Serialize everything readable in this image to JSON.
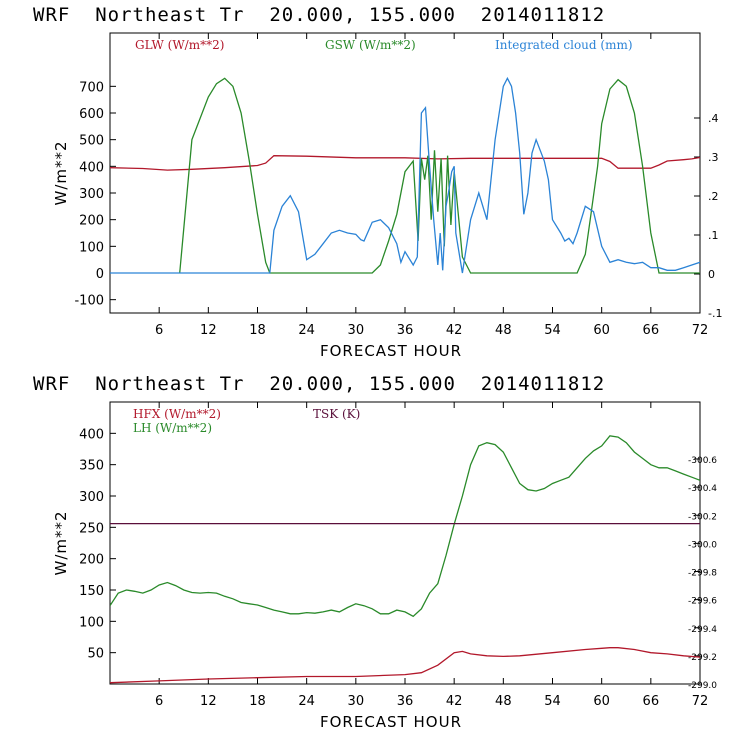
{
  "panels": [
    {
      "title": "WRF  Northeast Tr  20.000, 155.000  2014011812"
    },
    {
      "title": "WRF  Northeast Tr  20.000, 155.000  2014011812"
    }
  ],
  "colors": {
    "red": "#b2182b",
    "green": "#2a8a2a",
    "blue": "#2b83d6",
    "purple": "#5a0f3a"
  },
  "chart_data": [
    {
      "type": "line",
      "xlabel": "FORECAST HOUR",
      "ylabel": "W/m**2",
      "xlim": [
        0,
        72
      ],
      "ylim": [
        -150,
        900
      ],
      "x_ticks": [
        6,
        12,
        18,
        24,
        30,
        36,
        42,
        48,
        54,
        60,
        66,
        72
      ],
      "y_ticks": [
        -100,
        0,
        100,
        200,
        300,
        400,
        500,
        600,
        700
      ],
      "y2_ticks": [
        ".4",
        ".3",
        ".2",
        ".1",
        "0",
        "-.1"
      ],
      "legend": [
        "GLW (W/m**2)",
        "GSW (W/m**2)",
        "Integrated cloud (mm)"
      ],
      "series": [
        {
          "name": "GLW (W/m**2)",
          "color": "#b2182b",
          "x": [
            0,
            4,
            7,
            10,
            14,
            18,
            19,
            20,
            24,
            30,
            36,
            40,
            44,
            48,
            54,
            60,
            61,
            62,
            64,
            66,
            67,
            68,
            70,
            71,
            72
          ],
          "y": [
            395,
            392,
            386,
            389,
            395,
            403,
            412,
            440,
            438,
            432,
            432,
            428,
            430,
            430,
            430,
            430,
            418,
            393,
            393,
            393,
            405,
            420,
            425,
            428,
            433
          ]
        },
        {
          "name": "GSW (W/m**2)",
          "color": "#2a8a2a",
          "x": [
            8.5,
            10,
            12,
            13,
            14,
            15,
            16,
            17,
            18,
            19,
            19.5,
            32,
            33,
            34,
            35,
            36,
            37,
            37.6,
            38,
            38.4,
            38.8,
            39.2,
            39.6,
            40,
            40.4,
            40.8,
            41.2,
            41.6,
            42,
            43,
            44,
            46,
            48,
            50,
            52,
            54,
            56,
            57,
            58,
            58.6,
            59.5,
            60,
            61,
            62,
            63,
            64,
            65,
            66,
            67,
            72
          ],
          "y": [
            0,
            500,
            660,
            710,
            730,
            700,
            600,
            420,
            220,
            40,
            0,
            0,
            30,
            120,
            220,
            380,
            420,
            120,
            430,
            350,
            440,
            200,
            460,
            230,
            430,
            100,
            440,
            180,
            380,
            60,
            0,
            0,
            0,
            0,
            0,
            0,
            0,
            0,
            70,
            200,
            400,
            560,
            690,
            725,
            700,
            600,
            400,
            150,
            0,
            0
          ]
        },
        {
          "name": "Integrated cloud (mm)",
          "color": "#2b83d6",
          "x": [
            0,
            19.5,
            20,
            21,
            22,
            23,
            24,
            25,
            26,
            27,
            28,
            29,
            30,
            30.6,
            31,
            32,
            33,
            34,
            35,
            35.5,
            36,
            37,
            37.5,
            38,
            38.5,
            39,
            39.5,
            40,
            40.3,
            40.6,
            41,
            41.3,
            41.7,
            42,
            42.2,
            43,
            43.5,
            44,
            45,
            46,
            47,
            48,
            48.5,
            49,
            49.5,
            50,
            50.5,
            51,
            51.5,
            52,
            53,
            53.5,
            54,
            55,
            55.5,
            56,
            56.5,
            57,
            58,
            59,
            60,
            61,
            62,
            63,
            64,
            65,
            66,
            67,
            68,
            69,
            70,
            71,
            72
          ],
          "y": [
            0,
            0,
            160,
            250,
            290,
            230,
            50,
            70,
            110,
            150,
            160,
            150,
            145,
            125,
            120,
            190,
            200,
            170,
            110,
            40,
            80,
            30,
            60,
            600,
            620,
            400,
            200,
            30,
            150,
            10,
            250,
            300,
            380,
            400,
            150,
            0,
            100,
            200,
            300,
            200,
            500,
            700,
            730,
            700,
            600,
            450,
            220,
            300,
            450,
            500,
            420,
            350,
            200,
            150,
            120,
            130,
            110,
            150,
            250,
            230,
            100,
            40,
            50,
            40,
            35,
            40,
            20,
            20,
            10,
            10,
            20,
            30,
            40
          ]
        }
      ]
    },
    {
      "type": "line",
      "xlabel": "FORECAST HOUR",
      "ylabel": "W/m**2",
      "xlim": [
        0,
        72
      ],
      "ylim": [
        0,
        450
      ],
      "x_ticks": [
        6,
        12,
        18,
        24,
        30,
        36,
        42,
        48,
        54,
        60,
        66,
        72
      ],
      "y_ticks": [
        50,
        100,
        150,
        200,
        250,
        300,
        350,
        400
      ],
      "y2_ticks": [
        "300.6",
        "300.4",
        "300.2",
        "300.0",
        "299.8",
        "299.6",
        "299.4",
        "299.2",
        "299.0"
      ],
      "legend": [
        "HFX (W/m**2)",
        "LH  (W/m**2)",
        "TSK (K)"
      ],
      "series": [
        {
          "name": "HFX (W/m**2)",
          "color": "#b2182b",
          "x": [
            0,
            6,
            12,
            18,
            24,
            30,
            36,
            38,
            40,
            42,
            43,
            44,
            46,
            48,
            50,
            54,
            58,
            60,
            61,
            62,
            64,
            66,
            68,
            70,
            72
          ],
          "y": [
            2,
            5,
            8,
            10,
            12,
            12,
            15,
            18,
            30,
            50,
            52,
            48,
            45,
            44,
            45,
            50,
            55,
            57,
            58,
            58,
            55,
            50,
            48,
            45,
            43
          ]
        },
        {
          "name": "LH  (W/m**2)",
          "color": "#2a8a2a",
          "x": [
            0,
            1,
            2,
            3,
            4,
            5,
            6,
            7,
            8,
            9,
            10,
            11,
            12,
            13,
            14,
            15,
            16,
            17,
            18,
            19,
            20,
            21,
            22,
            23,
            24,
            25,
            26,
            27,
            28,
            29,
            30,
            31,
            32,
            33,
            34,
            35,
            36,
            37,
            38,
            39,
            40,
            41,
            42,
            43,
            44,
            45,
            46,
            47,
            48,
            49,
            50,
            51,
            52,
            53,
            54,
            55,
            56,
            57,
            58,
            59,
            60,
            61,
            62,
            63,
            64,
            65,
            66,
            67,
            68,
            69,
            70,
            71,
            72
          ],
          "y": [
            125,
            145,
            150,
            148,
            145,
            150,
            158,
            162,
            157,
            150,
            146,
            145,
            146,
            145,
            140,
            136,
            130,
            128,
            126,
            122,
            118,
            115,
            112,
            112,
            114,
            113,
            115,
            118,
            115,
            122,
            128,
            125,
            120,
            112,
            112,
            118,
            115,
            108,
            120,
            145,
            160,
            205,
            255,
            300,
            350,
            380,
            385,
            382,
            370,
            345,
            320,
            310,
            308,
            312,
            320,
            325,
            330,
            345,
            360,
            372,
            380,
            396,
            394,
            385,
            370,
            360,
            350,
            345,
            345,
            340,
            335,
            330,
            325
          ]
        },
        {
          "name": "TSK (K)",
          "color": "#5a0f3a",
          "x": [
            0,
            72
          ],
          "y": [
            256,
            256
          ]
        }
      ]
    }
  ]
}
